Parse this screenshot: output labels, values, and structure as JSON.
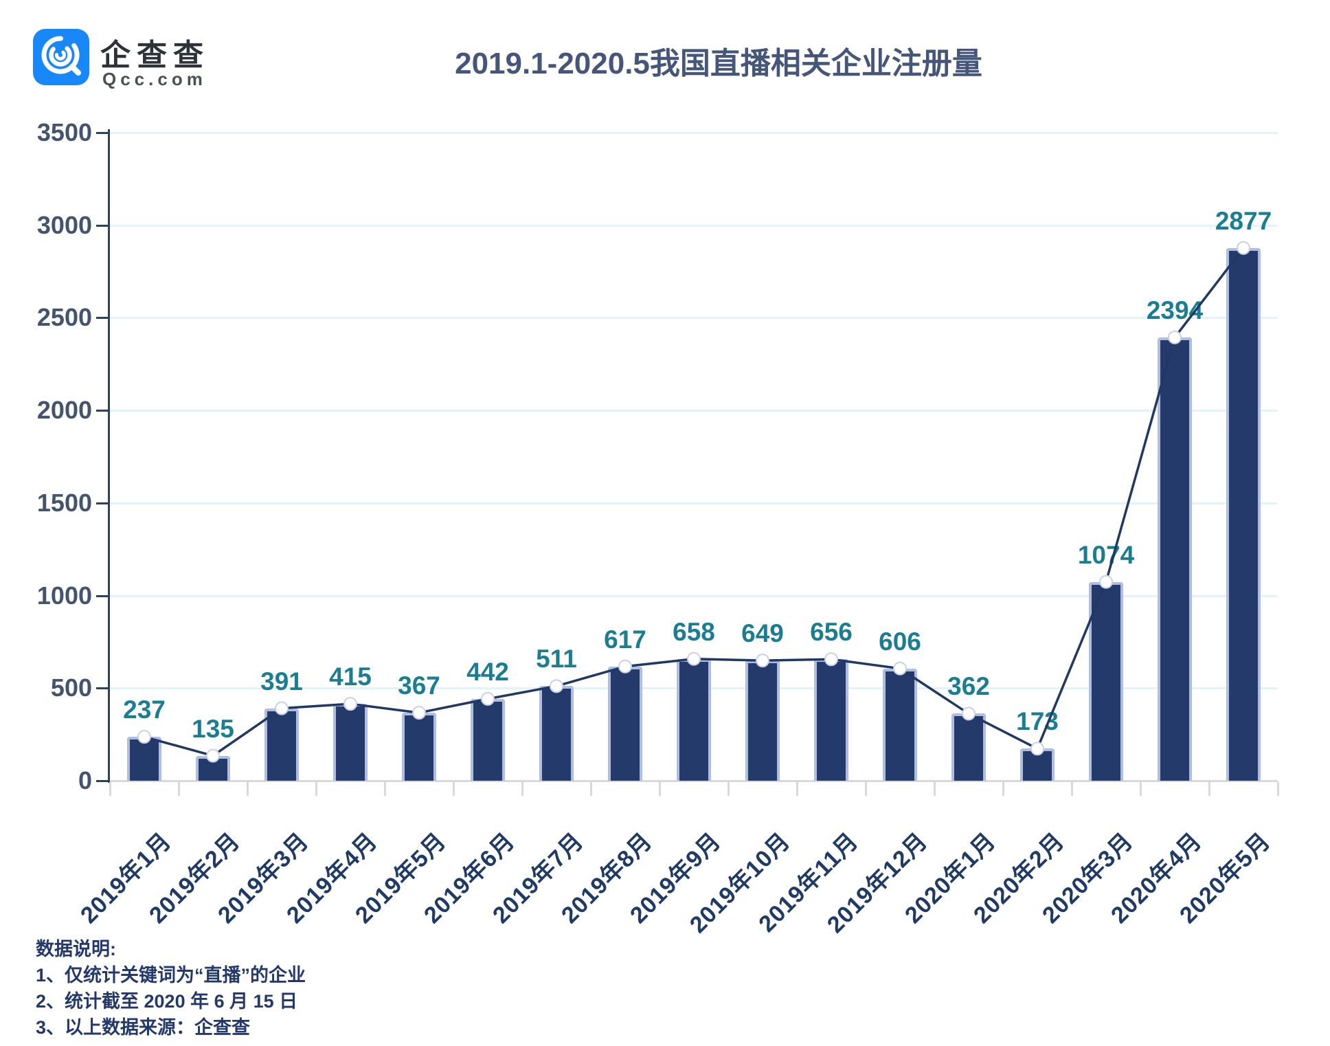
{
  "header": {
    "brand_name": "企查查",
    "brand_domain": "Qcc.com",
    "logo_icon": "qcc-magnifier-spiral-icon"
  },
  "chart_data": {
    "type": "bar",
    "overlay": "line",
    "title": "2019.1-2020.5我国直播相关企业注册量",
    "categories": [
      "2019年1月",
      "2019年2月",
      "2019年3月",
      "2019年4月",
      "2019年5月",
      "2019年6月",
      "2019年7月",
      "2019年8月",
      "2019年9月",
      "2019年10月",
      "2019年11月",
      "2019年12月",
      "2020年1月",
      "2020年2月",
      "2020年3月",
      "2020年4月",
      "2020年5月"
    ],
    "values": [
      237,
      135,
      391,
      415,
      367,
      442,
      511,
      617,
      658,
      649,
      656,
      606,
      362,
      173,
      1074,
      2394,
      2877
    ],
    "xlabel": "",
    "ylabel": "",
    "ylim": [
      0,
      3500
    ],
    "yticks": [
      0,
      500,
      1000,
      1500,
      2000,
      2500,
      3000,
      3500
    ],
    "grid": "horizontal",
    "legend": "none"
  },
  "notes": {
    "heading": "数据说明:",
    "items": [
      "1、仅统计关键词为“直播”的企业",
      "2、统计截至 2020 年 6 月 15 日",
      "3、以上数据来源：企查查"
    ]
  },
  "colors": {
    "bar_fill": "#243A6B",
    "bar_border": "#AFBDE2",
    "trend_line": "#203864",
    "marker_fill": "#FFFFFF",
    "marker_ring": "#C7D1E8",
    "gridline": "#E4F2F9",
    "x_axis": "#D9D9D9",
    "y_axis": "#2E4160",
    "value_label": "#1B7D92",
    "x_tick_label": "#203A66",
    "y_tick_label": "#44546C",
    "title": "#46567A",
    "notes_text": "#24396B",
    "brand_blue": "#1787FA"
  }
}
